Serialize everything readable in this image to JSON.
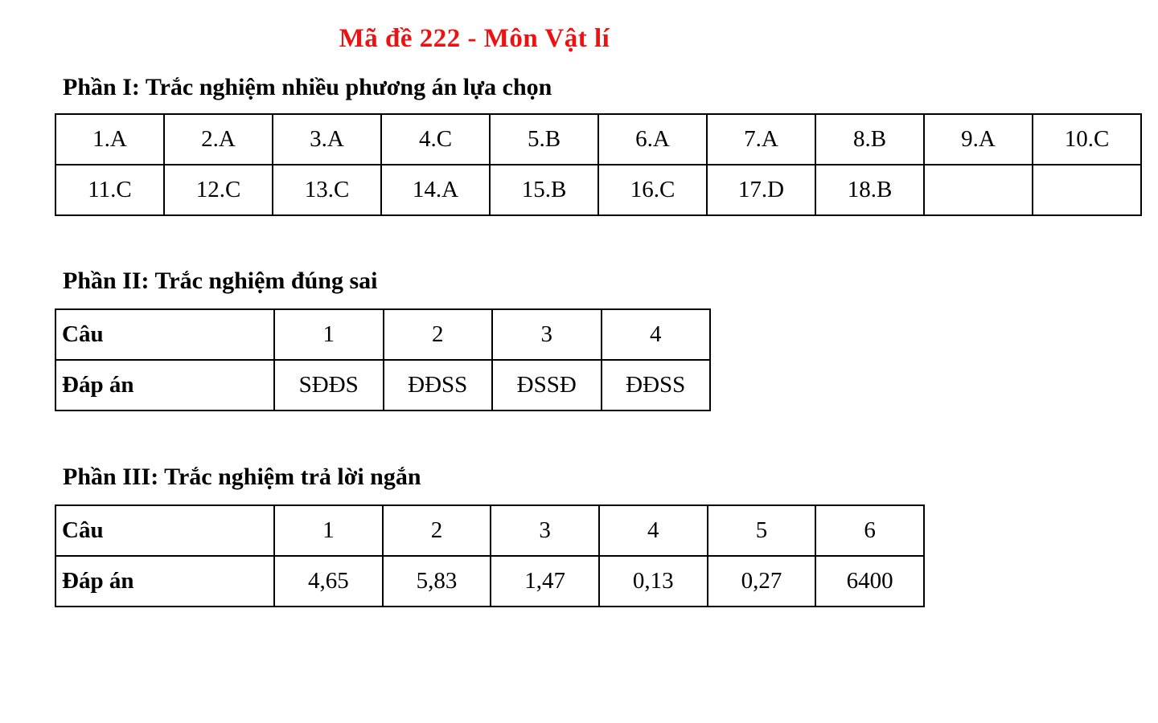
{
  "page": {
    "title": "Mã đề 222 - Môn Vật lí",
    "title_color": "#ee1111",
    "text_color": "#000000",
    "background_color": "#ffffff"
  },
  "part1": {
    "heading": "Phần I: Trắc nghiệm nhiều phương án lựa chọn",
    "rows": [
      [
        "1.A",
        "2.A",
        "3.A",
        "4.C",
        "5.B",
        "6.A",
        "7.A",
        "8.B",
        "9.A",
        "10.C"
      ],
      [
        "11.C",
        "12.C",
        "13.C",
        "14.A",
        "15.B",
        "16.C",
        "17.D",
        "18.B",
        "",
        ""
      ]
    ]
  },
  "part2": {
    "heading": "Phần II: Trắc nghiệm đúng sai",
    "question_label": "Câu",
    "answer_label": "Đáp án",
    "questions": [
      "1",
      "2",
      "3",
      "4"
    ],
    "answers": [
      "SĐĐS",
      "ĐĐSS",
      "ĐSSĐ",
      "ĐĐSS"
    ]
  },
  "part3": {
    "heading": "Phần III: Trắc nghiệm trả lời ngắn",
    "question_label": "Câu",
    "answer_label": "Đáp án",
    "questions": [
      "1",
      "2",
      "3",
      "4",
      "5",
      "6"
    ],
    "answers": [
      "4,65",
      "5,83",
      "1,47",
      "0,13",
      "0,27",
      "6400"
    ]
  }
}
